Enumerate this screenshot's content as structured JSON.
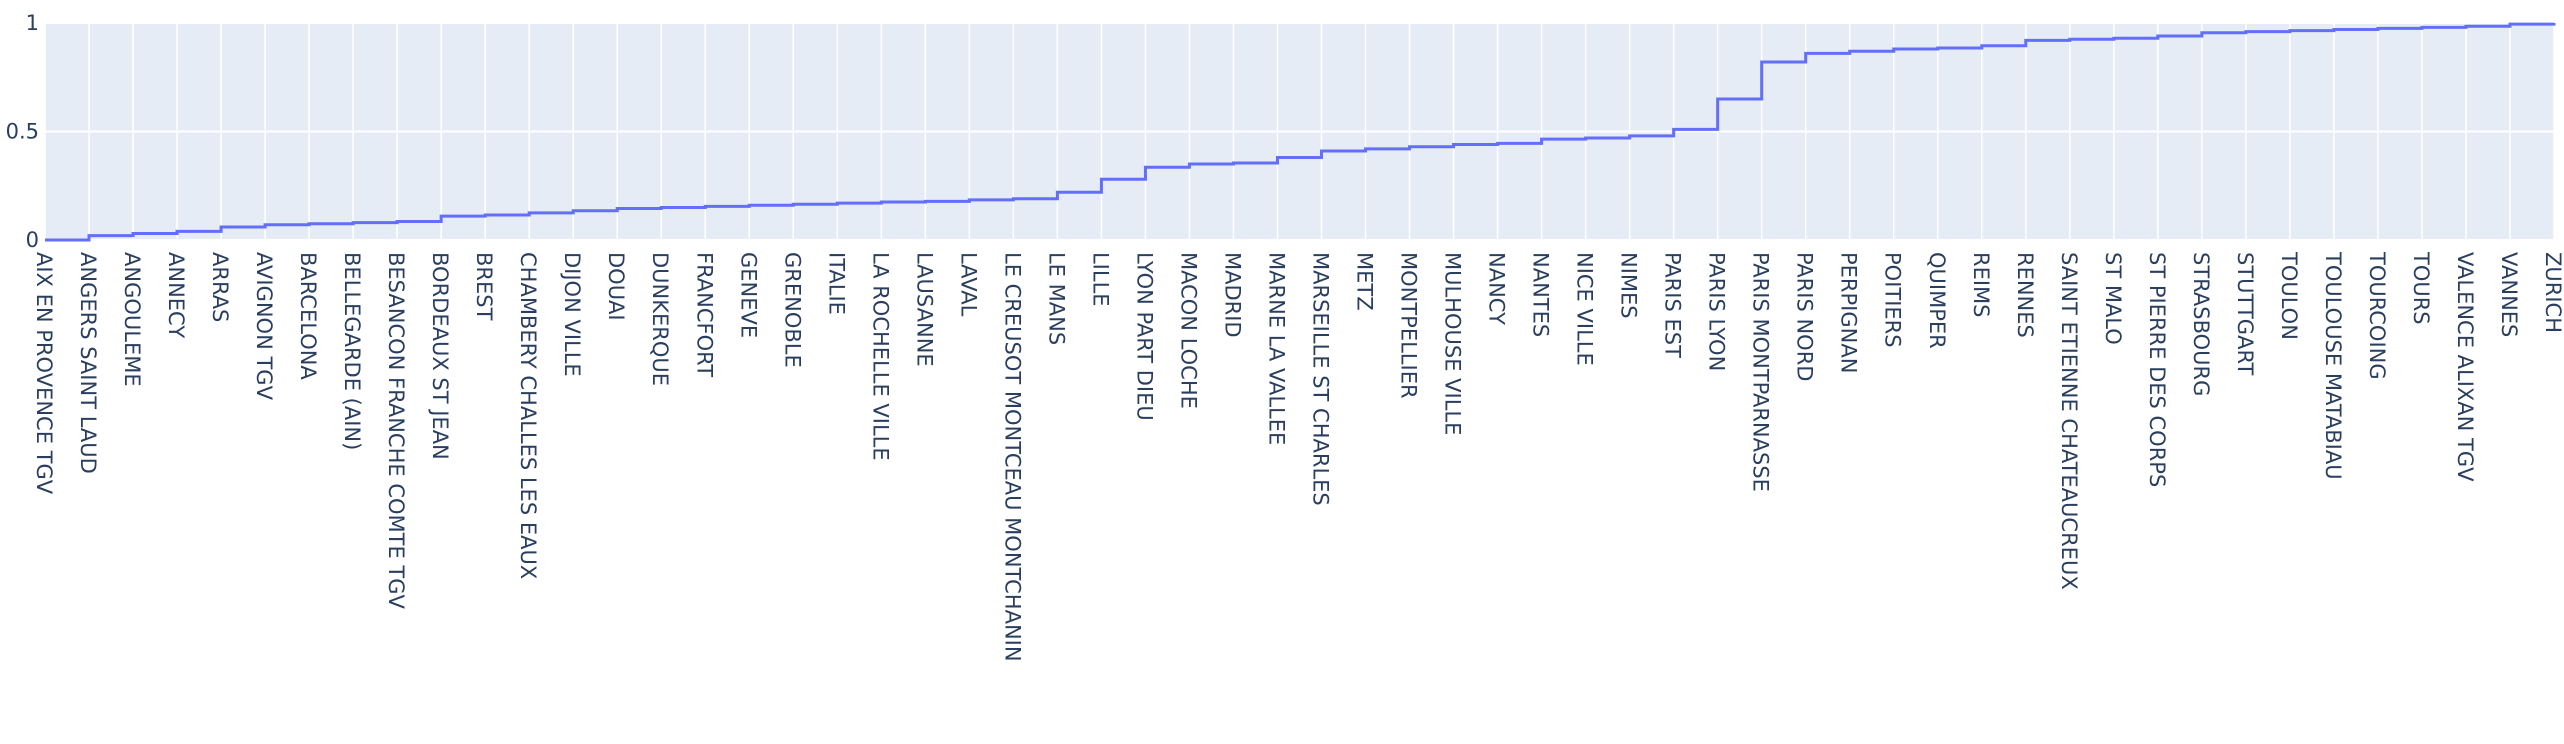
{
  "chart_data": {
    "type": "line",
    "line_shape": "step",
    "colors": {
      "plot_bg": "#e5ecf6",
      "grid": "#ffffff",
      "line": "#636efa",
      "tick_text": "#2a3f5f"
    },
    "grid": true,
    "legend": "none",
    "ylim": [
      0,
      1
    ],
    "yticks": [
      {
        "value": 0,
        "label": "0"
      },
      {
        "value": 0.5,
        "label": "0.5"
      },
      {
        "value": 1,
        "label": "1"
      }
    ],
    "categories": [
      "AIX EN PROVENCE TGV",
      "ANGERS SAINT LAUD",
      "ANGOULEME",
      "ANNECY",
      "ARRAS",
      "AVIGNON TGV",
      "BARCELONA",
      "BELLEGARDE (AIN)",
      "BESANCON FRANCHE COMTE TGV",
      "BORDEAUX ST JEAN",
      "BREST",
      "CHAMBERY CHALLES LES EAUX",
      "DIJON VILLE",
      "DOUAI",
      "DUNKERQUE",
      "FRANCFORT",
      "GENEVE",
      "GRENOBLE",
      "ITALIE",
      "LA ROCHELLE VILLE",
      "LAUSANNE",
      "LAVAL",
      "LE CREUSOT MONTCEAU MONTCHANIN",
      "LE MANS",
      "LILLE",
      "LYON PART DIEU",
      "MACON LOCHE",
      "MADRID",
      "MARNE LA VALLEE",
      "MARSEILLE ST CHARLES",
      "METZ",
      "MONTPELLIER",
      "MULHOUSE VILLE",
      "NANCY",
      "NANTES",
      "NICE VILLE",
      "NIMES",
      "PARIS EST",
      "PARIS LYON",
      "PARIS MONTPARNASSE",
      "PARIS NORD",
      "PERPIGNAN",
      "POITIERS",
      "QUIMPER",
      "REIMS",
      "RENNES",
      "SAINT ETIENNE CHATEAUCREUX",
      "ST MALO",
      "ST PIERRE DES CORPS",
      "STRASBOURG",
      "STUTTGART",
      "TOULON",
      "TOULOUSE MATABIAU",
      "TOURCOING",
      "TOURS",
      "VALENCE ALIXAN TGV",
      "VANNES",
      "ZURICH"
    ],
    "values": [
      0.0,
      0.02,
      0.03,
      0.04,
      0.06,
      0.07,
      0.075,
      0.08,
      0.085,
      0.11,
      0.115,
      0.125,
      0.135,
      0.145,
      0.15,
      0.155,
      0.16,
      0.165,
      0.17,
      0.175,
      0.178,
      0.185,
      0.19,
      0.22,
      0.28,
      0.335,
      0.35,
      0.355,
      0.38,
      0.41,
      0.42,
      0.43,
      0.44,
      0.445,
      0.465,
      0.47,
      0.48,
      0.51,
      0.65,
      0.82,
      0.86,
      0.87,
      0.88,
      0.885,
      0.895,
      0.92,
      0.925,
      0.93,
      0.94,
      0.955,
      0.96,
      0.965,
      0.97,
      0.975,
      0.98,
      0.985,
      0.995,
      1.0
    ]
  }
}
